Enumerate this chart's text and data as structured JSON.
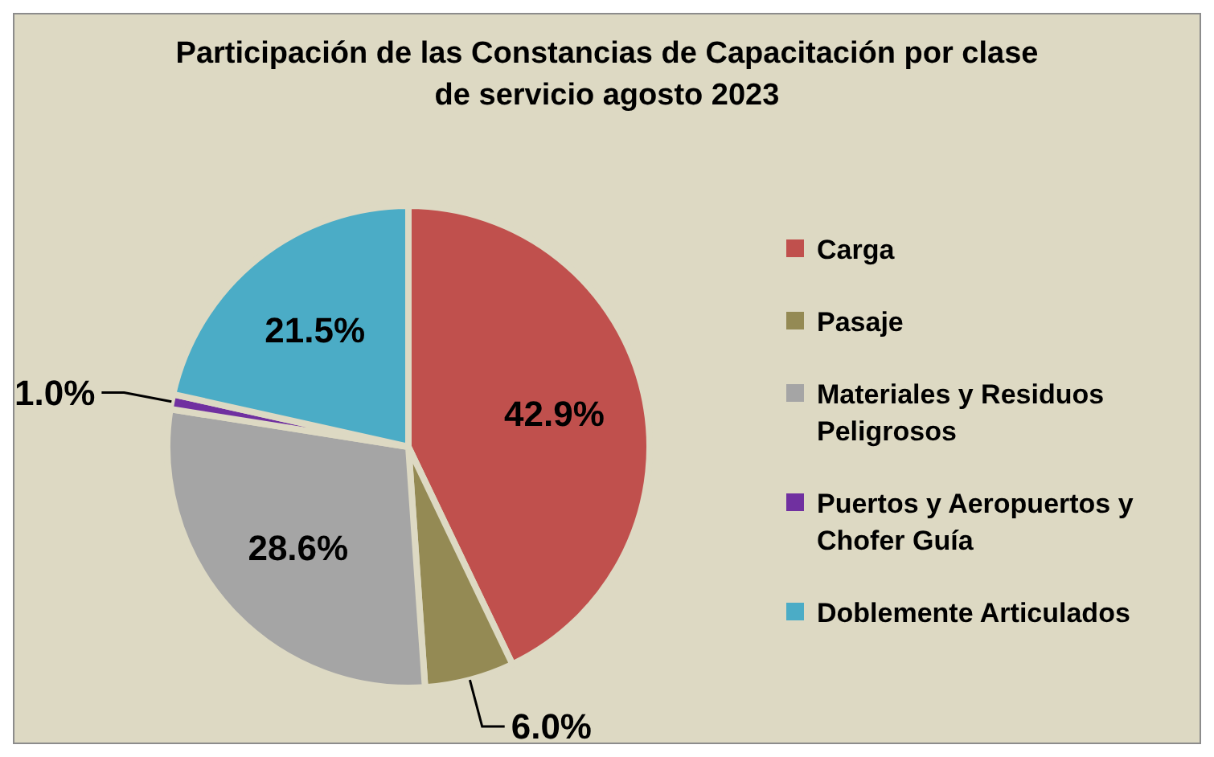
{
  "chart_data": {
    "type": "pie",
    "title": "Participación de las Constancias de Capacitación por clase de servicio agosto 2023",
    "categories": [
      "Carga",
      "Pasaje",
      "Materiales y Residuos Peligrosos",
      "Puertos y Aeropuertos y Chofer Guía",
      "Doblemente Articulados"
    ],
    "values": [
      42.9,
      6.0,
      28.6,
      1.0,
      21.5
    ],
    "colors": [
      "#c0504d",
      "#948a54",
      "#a5a5a5",
      "#7030a0",
      "#4bacc6"
    ],
    "value_labels": [
      "42.9%",
      "6.0%",
      "28.6%",
      "1.0%",
      "21.5%"
    ],
    "legend": "right"
  }
}
